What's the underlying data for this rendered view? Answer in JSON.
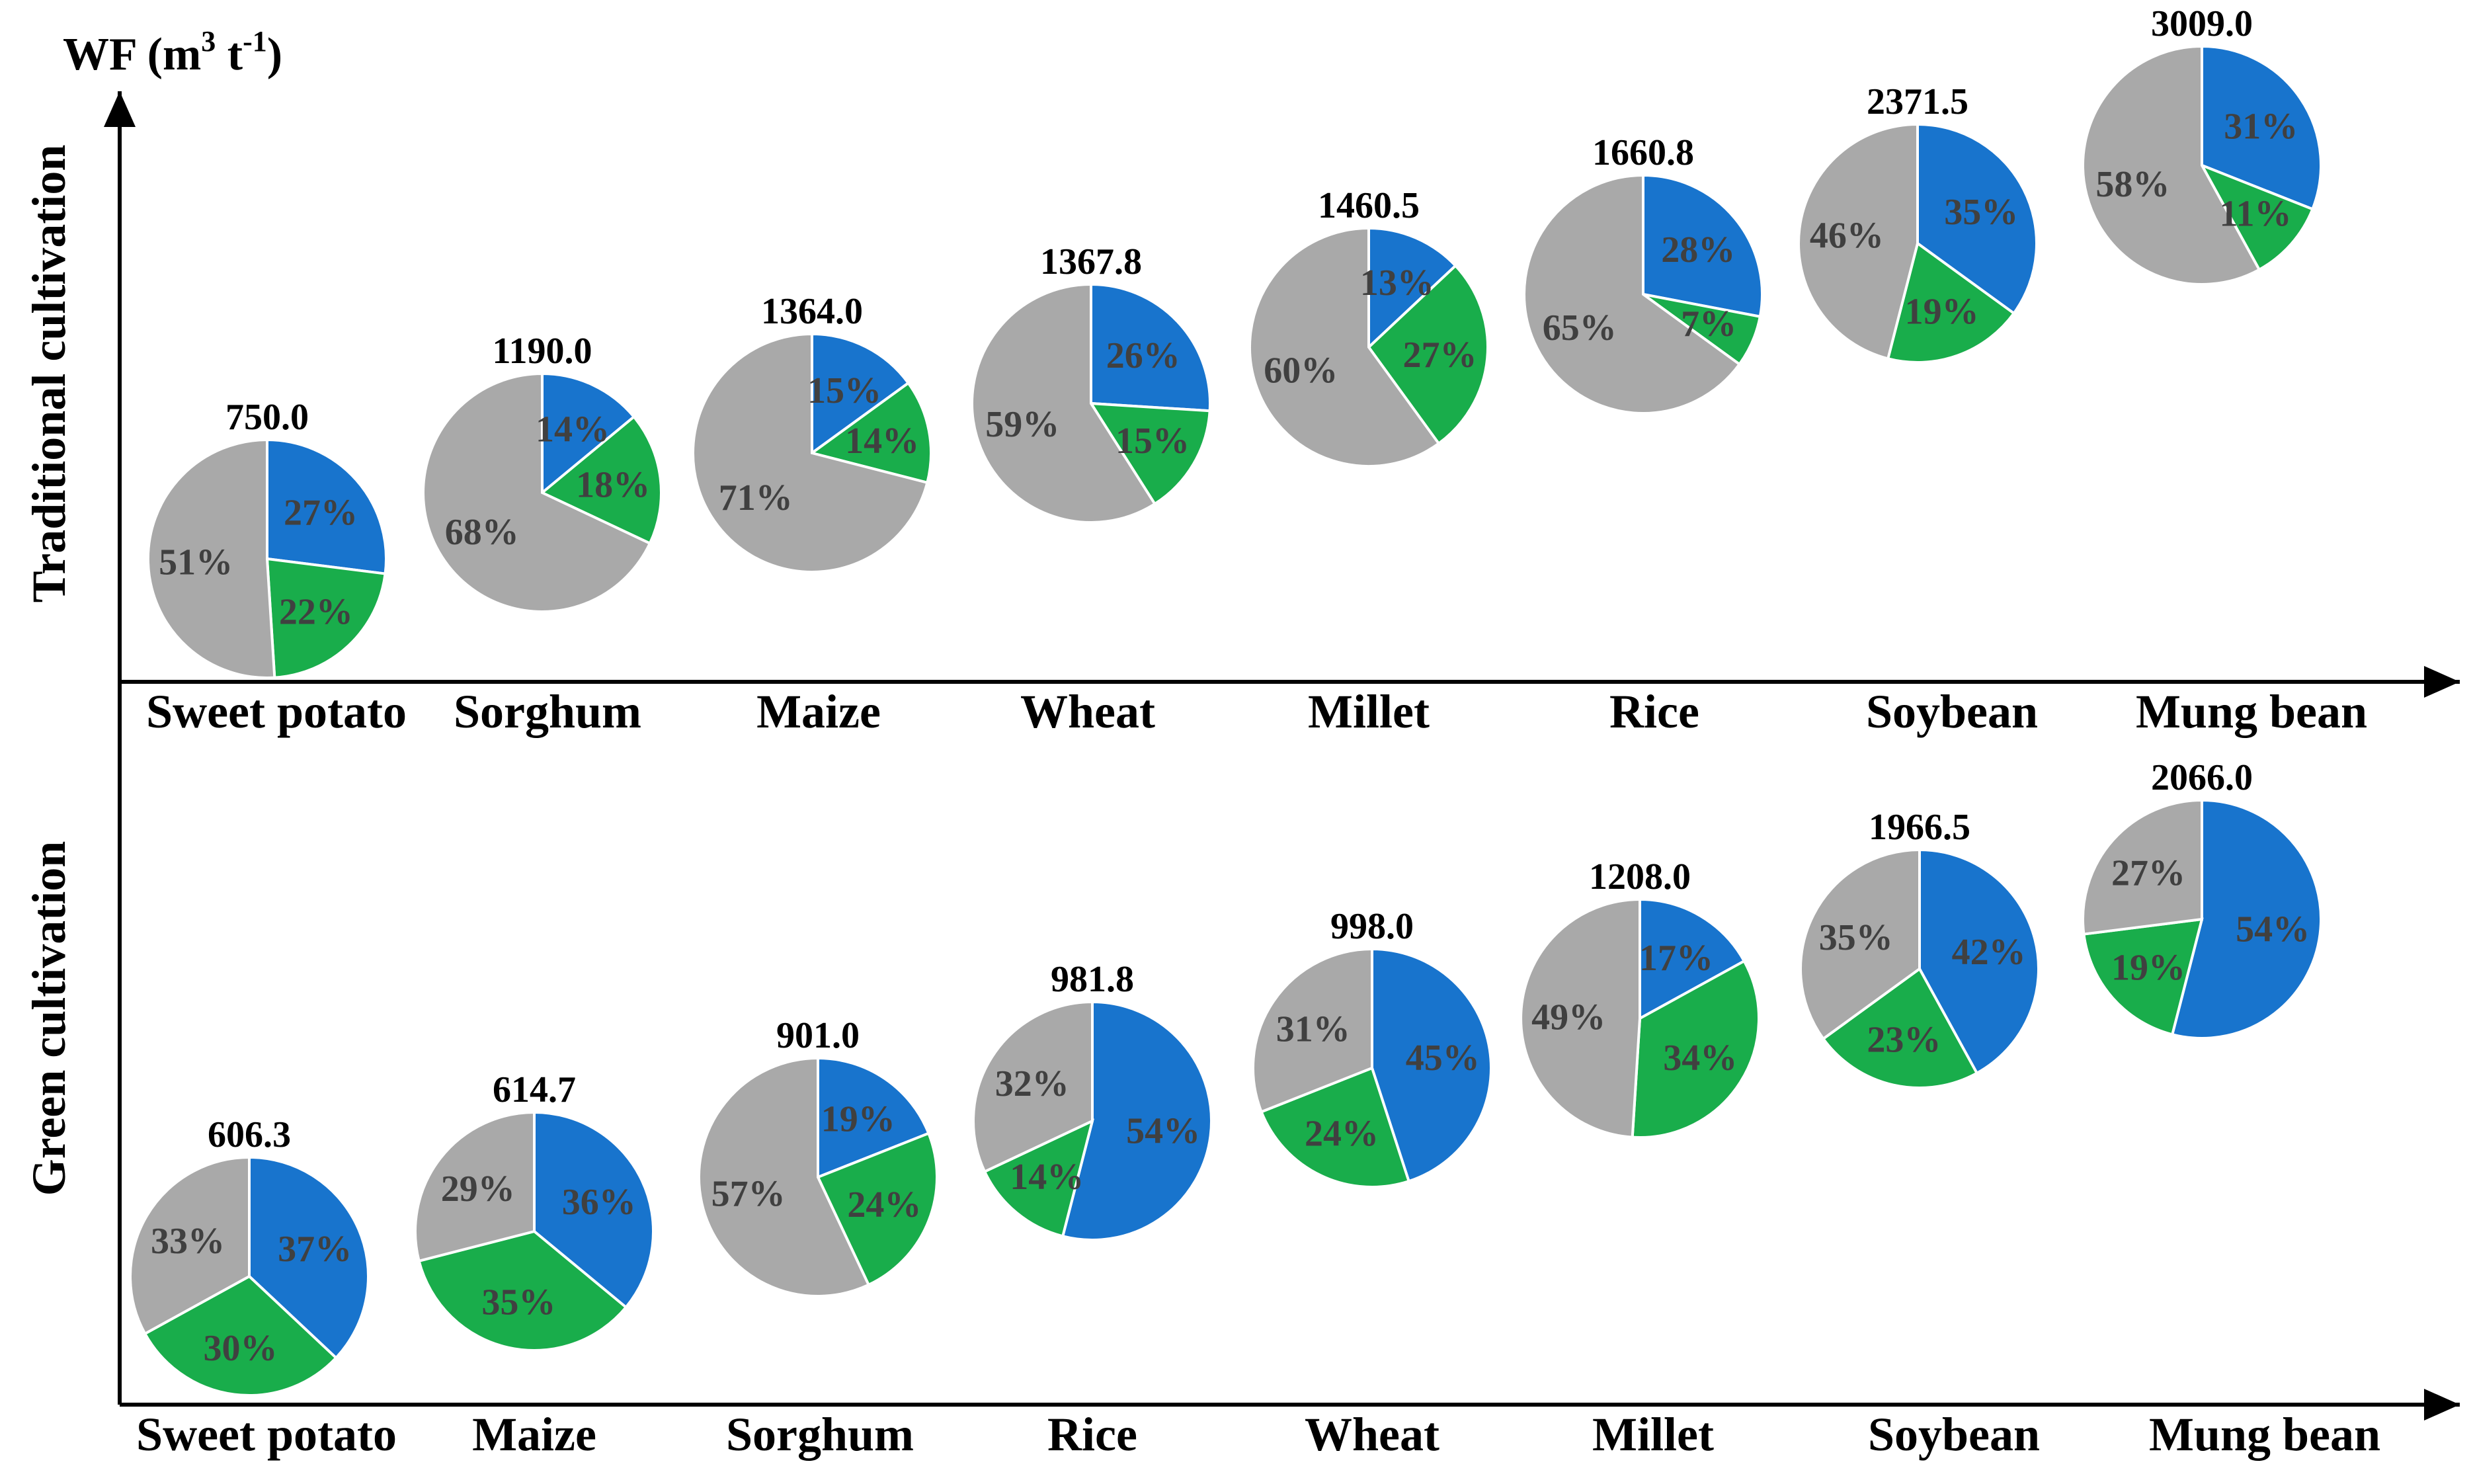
{
  "colors": {
    "blue": "#1874CD",
    "green": "#19AD4B",
    "gray": "#A9A9A9",
    "axis": "#000000"
  },
  "chart_data": {
    "type": "pie",
    "y_axis_title": "WF (m3 t-1)",
    "y_axis_title_parts": {
      "base": "WF (m",
      "sup1": "3",
      "mid": " t",
      "sup2": "-1",
      "end": ")"
    },
    "slice_order": [
      "blue",
      "green",
      "gray"
    ],
    "panels": [
      {
        "name": "Traditional cultivation",
        "crops": [
          {
            "name": "Sweet potato",
            "total": "750.0",
            "shares": [
              27,
              22,
              51
            ]
          },
          {
            "name": "Sorghum",
            "total": "1190.0",
            "shares": [
              14,
              18,
              68
            ]
          },
          {
            "name": "Maize",
            "total": "1364.0",
            "shares": [
              15,
              14,
              71
            ]
          },
          {
            "name": "Wheat",
            "total": "1367.8",
            "shares": [
              26,
              15,
              59
            ]
          },
          {
            "name": "Millet",
            "total": "1460.5",
            "shares": [
              13,
              27,
              60
            ]
          },
          {
            "name": "Rice",
            "total": "1660.8",
            "shares": [
              28,
              7,
              65
            ]
          },
          {
            "name": "Soybean",
            "total": "2371.5",
            "shares": [
              35,
              19,
              46
            ]
          },
          {
            "name": "Mung bean",
            "total": "3009.0",
            "shares": [
              31,
              11,
              58
            ]
          }
        ]
      },
      {
        "name": "Green cultivation",
        "crops": [
          {
            "name": "Sweet potato",
            "total": "606.3",
            "shares": [
              37,
              30,
              33
            ]
          },
          {
            "name": "Maize",
            "total": "614.7",
            "shares": [
              36,
              35,
              29
            ]
          },
          {
            "name": "Sorghum",
            "total": "901.0",
            "shares": [
              19,
              24,
              57
            ]
          },
          {
            "name": "Rice",
            "total": "981.8",
            "shares": [
              54,
              14,
              32
            ]
          },
          {
            "name": "Wheat",
            "total": "998.0",
            "shares": [
              45,
              24,
              31
            ]
          },
          {
            "name": "Millet",
            "total": "1208.0",
            "shares": [
              17,
              34,
              49
            ]
          },
          {
            "name": "Soybean",
            "total": "1966.5",
            "shares": [
              42,
              23,
              35
            ]
          },
          {
            "name": "Mung bean",
            "total": "2066.0",
            "shares": [
              54,
              19,
              27
            ]
          }
        ]
      }
    ]
  }
}
